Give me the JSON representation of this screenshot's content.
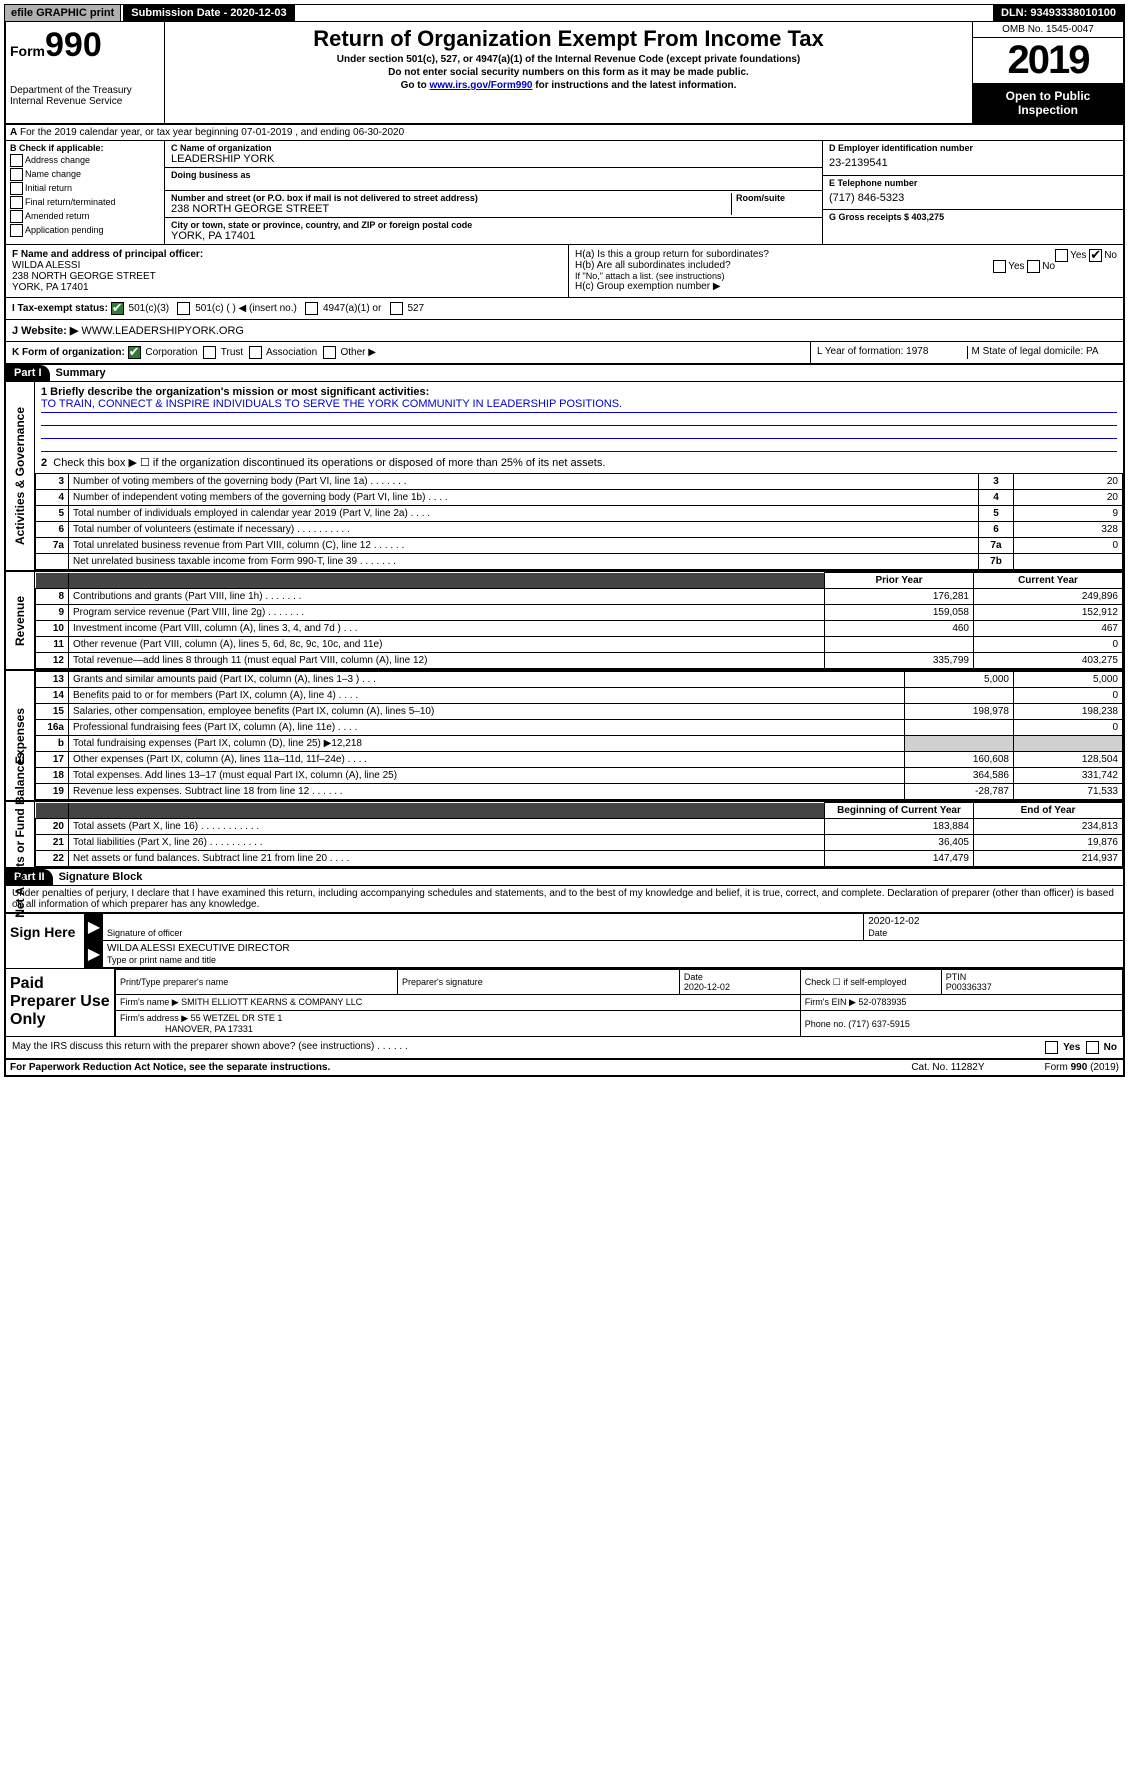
{
  "topbar": {
    "efile": "efile GRAPHIC print",
    "submission_label": "Submission Date - 2020-12-03",
    "dln": "DLN: 93493338010100"
  },
  "header": {
    "form_word": "Form",
    "form_number": "990",
    "department": "Department of the Treasury\nInternal Revenue Service",
    "title": "Return of Organization Exempt From Income Tax",
    "sub1": "Under section 501(c), 527, or 4947(a)(1) of the Internal Revenue Code (except private foundations)",
    "sub2": "Do not enter social security numbers on this form as it may be made public.",
    "sub3_prefix": "Go to ",
    "sub3_link": "www.irs.gov/Form990",
    "sub3_suffix": " for instructions and the latest information.",
    "omb": "OMB No. 1545-0047",
    "year": "2019",
    "open_public": "Open to Public Inspection"
  },
  "line_a": "For the 2019 calendar year, or tax year beginning 07-01-2019   , and ending 06-30-2020",
  "box_b": {
    "label": "B Check if applicable:",
    "opts": [
      "Address change",
      "Name change",
      "Initial return",
      "Final return/terminated",
      "Amended return",
      "Application pending"
    ]
  },
  "box_c": {
    "name_label": "C Name of organization",
    "name": "LEADERSHIP YORK",
    "dba_label": "Doing business as",
    "addr_label": "Number and street (or P.O. box if mail is not delivered to street address)",
    "room_label": "Room/suite",
    "addr": "238 NORTH GEORGE STREET",
    "city_label": "City or town, state or province, country, and ZIP or foreign postal code",
    "city": "YORK, PA  17401"
  },
  "box_d": {
    "ein_label": "D Employer identification number",
    "ein": "23-2139541",
    "tel_label": "E Telephone number",
    "tel": "(717) 846-5323",
    "gross_label": "G Gross receipts $ 403,275"
  },
  "box_f": {
    "label": "F  Name and address of principal officer:",
    "name": "WILDA ALESSI",
    "addr1": "238 NORTH GEORGE STREET",
    "addr2": "YORK, PA  17401"
  },
  "box_h": {
    "ha": "H(a)  Is this a group return for subordinates?",
    "ha_yes": "Yes",
    "ha_no": "No",
    "hb": "H(b)  Are all subordinates included?",
    "hb_yes": "Yes",
    "hb_no": "No",
    "hb_note": "If \"No,\" attach a list. (see instructions)",
    "hc": "H(c)  Group exemption number ▶"
  },
  "row_i": {
    "label": "I  Tax-exempt status:",
    "o1": "501(c)(3)",
    "o2": "501(c) (  ) ◀ (insert no.)",
    "o3": "4947(a)(1) or",
    "o4": "527"
  },
  "row_j": {
    "label": "J  Website: ▶",
    "url": "WWW.LEADERSHIPYORK.ORG"
  },
  "row_k": {
    "label": "K Form of organization:",
    "o1": "Corporation",
    "o2": "Trust",
    "o3": "Association",
    "o4": "Other ▶",
    "l": "L Year of formation: 1978",
    "m": "M State of legal domicile: PA"
  },
  "part1": {
    "hdr": "Part I",
    "title": "Summary",
    "l1_label": "1  Briefly describe the organization's mission or most significant activities:",
    "l1_text": "TO TRAIN, CONNECT & INSPIRE INDIVIDUALS TO SERVE THE YORK COMMUNITY IN LEADERSHIP POSITIONS.",
    "l2": "Check this box ▶ ☐  if the organization discontinued its operations or disposed of more than 25% of its net assets.",
    "rows_gov": [
      {
        "n": "3",
        "d": "Number of voting members of the governing body (Part VI, line 1a)  .    .    .    .    .    .    .",
        "b": "3",
        "v": "20"
      },
      {
        "n": "4",
        "d": "Number of independent voting members of the governing body (Part VI, line 1b)  .    .    .    .",
        "b": "4",
        "v": "20"
      },
      {
        "n": "5",
        "d": "Total number of individuals employed in calendar year 2019 (Part V, line 2a)  .    .    .    .",
        "b": "5",
        "v": "9"
      },
      {
        "n": "6",
        "d": "Total number of volunteers (estimate if necessary)  .    .    .    .    .    .    .    .    .    .",
        "b": "6",
        "v": "328"
      },
      {
        "n": "7a",
        "d": "Total unrelated business revenue from Part VIII, column (C), line 12  .    .    .    .    .    .",
        "b": "7a",
        "v": "0"
      },
      {
        "n": "",
        "d": "Net unrelated business taxable income from Form 990-T, line 39  .    .    .    .    .    .    .",
        "b": "7b",
        "v": ""
      }
    ],
    "col_prior": "Prior Year",
    "col_curr": "Current Year",
    "rows_rev": [
      {
        "n": "8",
        "d": "Contributions and grants (Part VIII, line 1h)  .    .    .    .    .    .    .",
        "p": "176,281",
        "c": "249,896"
      },
      {
        "n": "9",
        "d": "Program service revenue (Part VIII, line 2g)  .    .    .    .    .    .    .",
        "p": "159,058",
        "c": "152,912"
      },
      {
        "n": "10",
        "d": "Investment income (Part VIII, column (A), lines 3, 4, and 7d )  .    .    .",
        "p": "460",
        "c": "467"
      },
      {
        "n": "11",
        "d": "Other revenue (Part VIII, column (A), lines 5, 6d, 8c, 9c, 10c, and 11e)",
        "p": "",
        "c": "0"
      },
      {
        "n": "12",
        "d": "Total revenue—add lines 8 through 11 (must equal Part VIII, column (A), line 12)",
        "p": "335,799",
        "c": "403,275"
      }
    ],
    "rows_exp": [
      {
        "n": "13",
        "d": "Grants and similar amounts paid (Part IX, column (A), lines 1–3 )  .    .    .",
        "p": "5,000",
        "c": "5,000"
      },
      {
        "n": "14",
        "d": "Benefits paid to or for members (Part IX, column (A), line 4)  .    .    .    .",
        "p": "",
        "c": "0"
      },
      {
        "n": "15",
        "d": "Salaries, other compensation, employee benefits (Part IX, column (A), lines 5–10)",
        "p": "198,978",
        "c": "198,238"
      },
      {
        "n": "16a",
        "d": "Professional fundraising fees (Part IX, column (A), line 11e)  .    .    .    .",
        "p": "",
        "c": "0"
      },
      {
        "n": "b",
        "d": "Total fundraising expenses (Part IX, column (D), line 25) ▶12,218",
        "p": "grey",
        "c": "grey"
      },
      {
        "n": "17",
        "d": "Other expenses (Part IX, column (A), lines 11a–11d, 11f–24e)  .    .    .    .",
        "p": "160,608",
        "c": "128,504"
      },
      {
        "n": "18",
        "d": "Total expenses. Add lines 13–17 (must equal Part IX, column (A), line 25)",
        "p": "364,586",
        "c": "331,742"
      },
      {
        "n": "19",
        "d": "Revenue less expenses. Subtract line 18 from line 12  .    .    .    .    .    .",
        "p": "-28,787",
        "c": "71,533"
      }
    ],
    "col_begin": "Beginning of Current Year",
    "col_end": "End of Year",
    "rows_net": [
      {
        "n": "20",
        "d": "Total assets (Part X, line 16)  .    .    .    .    .    .    .    .    .    .    .",
        "p": "183,884",
        "c": "234,813"
      },
      {
        "n": "21",
        "d": "Total liabilities (Part X, line 26)  .    .    .    .    .    .    .    .    .    .",
        "p": "36,405",
        "c": "19,876"
      },
      {
        "n": "22",
        "d": "Net assets or fund balances. Subtract line 21 from line 20  .    .    .    .",
        "p": "147,479",
        "c": "214,937"
      }
    ],
    "side_gov": "Activities & Governance",
    "side_rev": "Revenue",
    "side_exp": "Expenses",
    "side_net": "Net Assets or Fund Balances"
  },
  "part2": {
    "hdr": "Part II",
    "title": "Signature Block",
    "perjury": "Under penalties of perjury, I declare that I have examined this return, including accompanying schedules and statements, and to the best of my knowledge and belief, it is true, correct, and complete. Declaration of preparer (other than officer) is based on all information of which preparer has any knowledge."
  },
  "sign": {
    "label": "Sign Here",
    "sig_of_officer": "Signature of officer",
    "date": "2020-12-02",
    "date_label": "Date",
    "name": "WILDA ALESSI  EXECUTIVE DIRECTOR",
    "name_label": "Type or print name and title"
  },
  "paid": {
    "label": "Paid Preparer Use Only",
    "col1": "Print/Type preparer's name",
    "col2": "Preparer's signature",
    "col3_label": "Date",
    "col3": "2020-12-02",
    "col4": "Check ☐ if self-employed",
    "col5_label": "PTIN",
    "col5": "P00336337",
    "firm_name_label": "Firm's name      ▶",
    "firm_name": "SMITH ELLIOTT KEARNS & COMPANY LLC",
    "firm_ein_label": "Firm's EIN ▶",
    "firm_ein": "52-0783935",
    "firm_addr_label": "Firm's address ▶",
    "firm_addr1": "55 WETZEL DR STE 1",
    "firm_addr2": "HANOVER, PA  17331",
    "phone_label": "Phone no.",
    "phone": "(717) 637-5915"
  },
  "discuss": {
    "q": "May the IRS discuss this return with the preparer shown above? (see instructions)   .    .    .    .    .    .",
    "yes": "Yes",
    "no": "No"
  },
  "footer": {
    "left": "For Paperwork Reduction Act Notice, see the separate instructions.",
    "mid": "Cat. No. 11282Y",
    "right": "Form 990 (2019)"
  }
}
